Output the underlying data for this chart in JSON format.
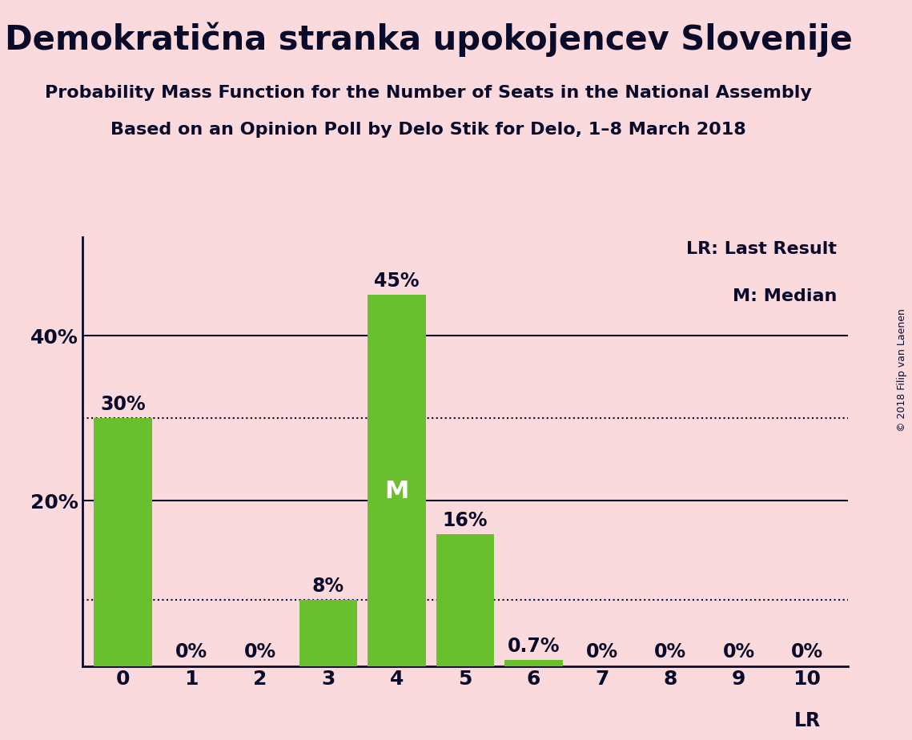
{
  "title": "Demokratična stranka upokojencev Slovenije",
  "subtitle1": "Probability Mass Function for the Number of Seats in the National Assembly",
  "subtitle2": "Based on an Opinion Poll by Delo Stik for Delo, 1–8 March 2018",
  "copyright": "© 2018 Filip van Laenen",
  "categories": [
    0,
    1,
    2,
    3,
    4,
    5,
    6,
    7,
    8,
    9,
    10
  ],
  "values": [
    0.3,
    0.0,
    0.0,
    0.08,
    0.45,
    0.16,
    0.007,
    0.0,
    0.0,
    0.0,
    0.0
  ],
  "bar_labels": [
    "30%",
    "0%",
    "0%",
    "8%",
    "45%",
    "16%",
    "0.7%",
    "0%",
    "0%",
    "0%",
    "0%"
  ],
  "bar_color": "#6abf2e",
  "background_color": "#fadadd",
  "text_color": "#0a0a2a",
  "median_bar": 4,
  "median_label": "M",
  "lr_bar": 10,
  "lr_label": "LR",
  "legend_text1": "LR: Last Result",
  "legend_text2": "M: Median",
  "yticks": [
    0.2,
    0.4
  ],
  "ytick_labels": [
    "20%",
    "40%"
  ],
  "solid_lines": [
    0.2,
    0.4
  ],
  "dotted_lines": [
    0.08,
    0.3
  ],
  "ylim": [
    0,
    0.52
  ],
  "xlim": [
    -0.6,
    10.6
  ],
  "title_fontsize": 30,
  "subtitle_fontsize": 16,
  "bar_label_fontsize": 17,
  "axis_tick_fontsize": 18,
  "legend_fontsize": 16,
  "median_label_fontsize": 22,
  "copyright_fontsize": 9
}
